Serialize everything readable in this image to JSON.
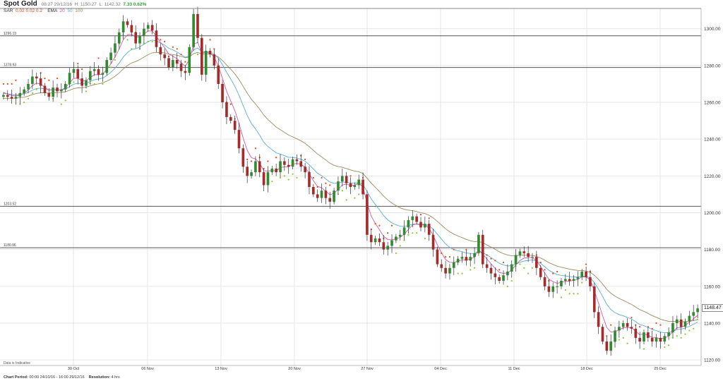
{
  "header": {
    "title": "Spot Gold",
    "timestamp": "08:27 29/12/16",
    "high_label": "H: 1150.27",
    "low_label": "L: 1142.32",
    "change": "7.33 0.62%",
    "sar_label": "SAR",
    "sar_params": "0.02  0.02  0.2",
    "ema_label": "EMA",
    "ema_20": "20",
    "ema_50": "50",
    "ema_100": "100"
  },
  "footer": {
    "period_label": "Chart Period:",
    "period_value": "00:00 24/10/16 - 16:00 29/12/16",
    "resolution_label": "Resolution:",
    "resolution_value": "4 hrs"
  },
  "indicative_note": "Data is Indicative",
  "last_price": "1148.47",
  "colors": {
    "up": "#2e8b2e",
    "down": "#a52a2a",
    "sar_above": "#e04a14",
    "sar_below": "#7ccf2a",
    "ema20": "#d45aa6",
    "ema50": "#5aaed6",
    "ema100": "#a08a60",
    "hline": "#555555",
    "grid": "#e6e6e6"
  },
  "chart_data": {
    "type": "candlestick",
    "title": "Spot Gold",
    "x_ticks": [
      "30 Oct",
      "06 Nov",
      "13 Nov",
      "20 Nov",
      "27 Nov",
      "04 Dec",
      "11 Dec",
      "18 Dec",
      "25 Dec"
    ],
    "y_ticks": [
      "1120.00",
      "1140.00",
      "1160.00",
      "1180.00",
      "1200.00",
      "1220.00",
      "1240.00",
      "1260.00",
      "1280.00",
      "1300.00"
    ],
    "ylim": [
      1117,
      1311
    ],
    "horizontal_levels": [
      {
        "label": "1296.13",
        "value": 1296.13
      },
      {
        "label": "1278.93",
        "value": 1278.93
      },
      {
        "label": "1203.52",
        "value": 1203.52
      },
      {
        "label": "1180.96",
        "value": 1180.96
      }
    ],
    "series_close": [
      1264,
      1263,
      1262,
      1263,
      1265,
      1267,
      1270,
      1274,
      1273,
      1269,
      1265,
      1263,
      1268,
      1266,
      1267,
      1270,
      1276,
      1278,
      1273,
      1269,
      1272,
      1277,
      1278,
      1275,
      1276,
      1283,
      1287,
      1292,
      1298,
      1304,
      1302,
      1298,
      1292,
      1296,
      1300,
      1302,
      1299,
      1290,
      1286,
      1284,
      1279,
      1283,
      1281,
      1277,
      1276,
      1290,
      1308,
      1295,
      1275,
      1288,
      1286,
      1280,
      1270,
      1260,
      1252,
      1250,
      1245,
      1235,
      1225,
      1220,
      1222,
      1228,
      1222,
      1215,
      1222,
      1224,
      1222,
      1228,
      1226,
      1225,
      1229,
      1228,
      1225,
      1222,
      1214,
      1210,
      1208,
      1212,
      1208,
      1206,
      1212,
      1217,
      1220,
      1216,
      1214,
      1215,
      1218,
      1210,
      1188,
      1184,
      1186,
      1184,
      1180,
      1182,
      1185,
      1187,
      1188,
      1192,
      1196,
      1198,
      1195,
      1192,
      1194,
      1188,
      1180,
      1172,
      1170,
      1167,
      1170,
      1173,
      1175,
      1176,
      1174,
      1176,
      1178,
      1188,
      1172,
      1170,
      1167,
      1165,
      1163,
      1166,
      1168,
      1172,
      1177,
      1179,
      1178,
      1176,
      1176,
      1170,
      1165,
      1160,
      1157,
      1160,
      1160,
      1163,
      1164,
      1163,
      1164,
      1165,
      1168,
      1165,
      1160,
      1146,
      1138,
      1130,
      1125,
      1130,
      1136,
      1138,
      1140,
      1138,
      1137,
      1132,
      1130,
      1135,
      1132,
      1130,
      1132,
      1130,
      1133,
      1135,
      1140,
      1142,
      1138,
      1141,
      1144,
      1146,
      1148
    ]
  }
}
